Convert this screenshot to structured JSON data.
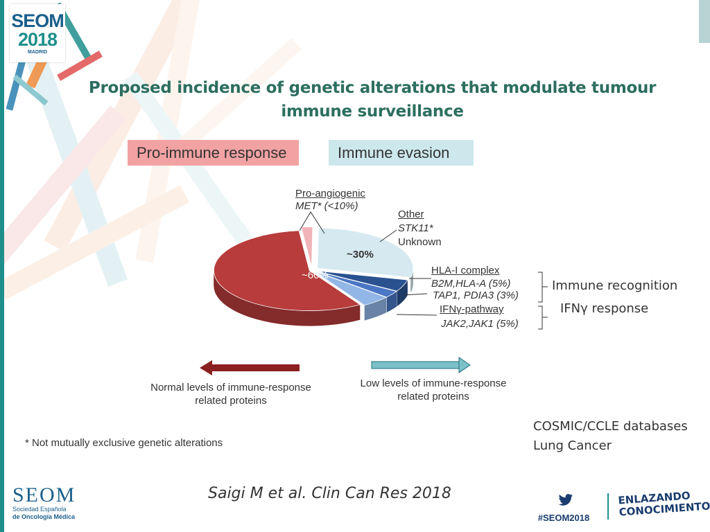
{
  "header": {
    "logo": {
      "brand": "SEOM",
      "year": "2018",
      "city": "MADRID"
    },
    "title": "Proposed incidence of genetic alterations that modulate tumour immune surveillance"
  },
  "badges": {
    "pro_immune": "Pro-immune response",
    "immune_evasion": "Immune evasion"
  },
  "chart_data": {
    "type": "pie",
    "style": "3d-exploded",
    "slices": [
      {
        "label": "~60%",
        "value": 60,
        "color": "#b83c3c"
      },
      {
        "label": "~30%",
        "value": 30,
        "color": "#d6e9f0"
      },
      {
        "label": "",
        "value": 5,
        "color": "#2a5290"
      },
      {
        "label": "",
        "value": 3,
        "color": "#4a76c4"
      },
      {
        "label": "",
        "value": 5,
        "color": "#92b6e6"
      },
      {
        "label": "",
        "value": 2,
        "color": "#f0b4b8"
      }
    ],
    "annotations": {
      "pro_angiogenic": {
        "heading": "Pro-angiogenic",
        "detail": "MET* (<10%)"
      },
      "other": {
        "heading": "Other",
        "detail": "STK11*",
        "detail2": "Unknown"
      },
      "hla": {
        "heading": "HLA-I complex",
        "detail": "B2M,HLA-A (5%)",
        "detail2": "TAP1, PDIA3 (3%)"
      },
      "ifng": {
        "heading": "IFNγ-pathway",
        "detail": "JAK2,JAK1 (5%)"
      }
    },
    "groups": {
      "immune_recognition": "Immune recognition",
      "ifng_response": "IFNγ response"
    }
  },
  "arrows": {
    "left_caption": "Normal levels of immune-response related proteins",
    "right_caption": "Low levels of immune-response related proteins"
  },
  "source": {
    "line1": "COSMIC/CCLE databases",
    "line2": "Lung Cancer"
  },
  "footnote": "* Not mutually exclusive genetic alterations",
  "citation": "Saigi M et al. Clin Can Res 2018",
  "footer": {
    "org": "SEOM",
    "org_sub1": "Sociedad Española",
    "org_sub2": "de Oncología Médica",
    "hashtag": "#SEOM2018",
    "slogan1": "ENLAZANDO",
    "slogan2": "CONOCIMIENTO"
  },
  "colors": {
    "title": "#2c6e5f",
    "accent": "#1f8f8c",
    "pro": "#f2a2a2",
    "evasion": "#cde8ec"
  }
}
